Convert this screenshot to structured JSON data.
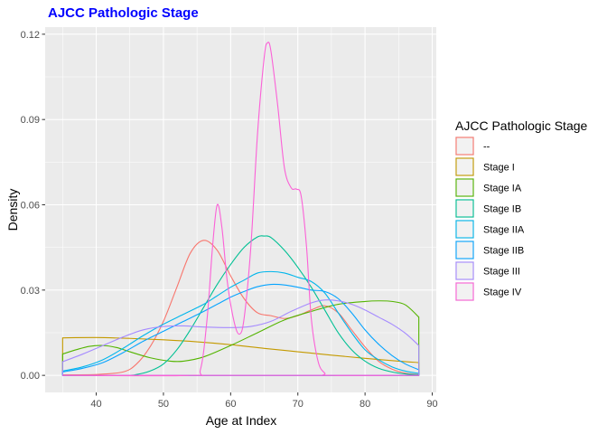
{
  "chart_data": {
    "type": "line",
    "title": "AJCC Pathologic Stage",
    "xlabel": "Age at Index",
    "ylabel": "Density",
    "xlim": [
      35,
      88
    ],
    "ylim": [
      0,
      0.12
    ],
    "x_ticks": [
      40,
      50,
      60,
      70,
      80,
      90
    ],
    "y_ticks": [
      0.0,
      0.03,
      0.06,
      0.09,
      0.12
    ],
    "x_tick_labels": [
      "40",
      "50",
      "60",
      "70",
      "80",
      "90"
    ],
    "y_tick_labels": [
      "0.00",
      "0.03",
      "0.06",
      "0.09",
      "0.12"
    ],
    "grid": true,
    "legend": {
      "title": "AJCC Pathologic Stage",
      "position": "right"
    },
    "series": [
      {
        "name": "--",
        "color": "#F8766D",
        "points": [
          [
            35,
            0.0002
          ],
          [
            40,
            0.0003
          ],
          [
            44,
            0.0012
          ],
          [
            46,
            0.004
          ],
          [
            48,
            0.01
          ],
          [
            50,
            0.019
          ],
          [
            52,
            0.031
          ],
          [
            54,
            0.043
          ],
          [
            56,
            0.0475
          ],
          [
            58,
            0.044
          ],
          [
            60,
            0.035
          ],
          [
            62,
            0.027
          ],
          [
            64,
            0.022
          ],
          [
            66,
            0.021
          ],
          [
            68,
            0.02
          ],
          [
            70,
            0.021
          ],
          [
            72,
            0.023
          ],
          [
            74,
            0.0245
          ],
          [
            76,
            0.022
          ],
          [
            78,
            0.016
          ],
          [
            80,
            0.01
          ],
          [
            82,
            0.005
          ],
          [
            84,
            0.0022
          ],
          [
            86,
            0.0008
          ],
          [
            88,
            0.0003
          ]
        ]
      },
      {
        "name": "Stage I",
        "color": "#C49A00",
        "points": [
          [
            35,
            0.0132
          ],
          [
            40,
            0.0133
          ],
          [
            45,
            0.013
          ],
          [
            50,
            0.0125
          ],
          [
            55,
            0.0118
          ],
          [
            60,
            0.0108
          ],
          [
            65,
            0.0095
          ],
          [
            70,
            0.0083
          ],
          [
            75,
            0.0071
          ],
          [
            80,
            0.006
          ],
          [
            85,
            0.005
          ],
          [
            88,
            0.0045
          ]
        ]
      },
      {
        "name": "Stage IA",
        "color": "#53B400",
        "points": [
          [
            35,
            0.0075
          ],
          [
            37,
            0.009
          ],
          [
            39,
            0.0102
          ],
          [
            41,
            0.0105
          ],
          [
            43,
            0.0098
          ],
          [
            45,
            0.0083
          ],
          [
            48,
            0.0062
          ],
          [
            51,
            0.005
          ],
          [
            53,
            0.005
          ],
          [
            56,
            0.0065
          ],
          [
            60,
            0.0105
          ],
          [
            64,
            0.015
          ],
          [
            68,
            0.0195
          ],
          [
            72,
            0.0225
          ],
          [
            76,
            0.025
          ],
          [
            80,
            0.026
          ],
          [
            82,
            0.0262
          ],
          [
            84,
            0.026
          ],
          [
            86,
            0.0248
          ],
          [
            88,
            0.0205
          ]
        ]
      },
      {
        "name": "Stage IB",
        "color": "#00C094",
        "points": [
          [
            35,
            0
          ],
          [
            44,
            0
          ],
          [
            46,
            0.0003
          ],
          [
            48,
            0.0015
          ],
          [
            50,
            0.004
          ],
          [
            52,
            0.009
          ],
          [
            54,
            0.016
          ],
          [
            56,
            0.024
          ],
          [
            58,
            0.032
          ],
          [
            60,
            0.039
          ],
          [
            62,
            0.045
          ],
          [
            64,
            0.0487
          ],
          [
            65,
            0.049
          ],
          [
            66,
            0.0485
          ],
          [
            68,
            0.044
          ],
          [
            70,
            0.038
          ],
          [
            72,
            0.031
          ],
          [
            74,
            0.023
          ],
          [
            76,
            0.015
          ],
          [
            78,
            0.009
          ],
          [
            80,
            0.005
          ],
          [
            82,
            0.0025
          ],
          [
            84,
            0.0012
          ],
          [
            86,
            0.0005
          ],
          [
            88,
            0.0002
          ]
        ]
      },
      {
        "name": "Stage IIA",
        "color": "#00B6EB",
        "points": [
          [
            35,
            0.0015
          ],
          [
            38,
            0.003
          ],
          [
            41,
            0.0055
          ],
          [
            44,
            0.0095
          ],
          [
            47,
            0.014
          ],
          [
            50,
            0.018
          ],
          [
            53,
            0.0215
          ],
          [
            56,
            0.025
          ],
          [
            58,
            0.028
          ],
          [
            60,
            0.031
          ],
          [
            62,
            0.0335
          ],
          [
            64,
            0.036
          ],
          [
            66,
            0.0365
          ],
          [
            68,
            0.036
          ],
          [
            70,
            0.0345
          ],
          [
            72,
            0.033
          ],
          [
            74,
            0.029
          ],
          [
            76,
            0.022
          ],
          [
            78,
            0.015
          ],
          [
            80,
            0.009
          ],
          [
            82,
            0.0055
          ],
          [
            84,
            0.003
          ],
          [
            86,
            0.0015
          ],
          [
            88,
            0.0007
          ]
        ]
      },
      {
        "name": "Stage IIB",
        "color": "#06A4FF",
        "points": [
          [
            35,
            0.0012
          ],
          [
            38,
            0.0025
          ],
          [
            41,
            0.0045
          ],
          [
            44,
            0.008
          ],
          [
            47,
            0.012
          ],
          [
            50,
            0.0155
          ],
          [
            53,
            0.019
          ],
          [
            56,
            0.0225
          ],
          [
            58,
            0.025
          ],
          [
            60,
            0.0275
          ],
          [
            62,
            0.0295
          ],
          [
            64,
            0.0312
          ],
          [
            66,
            0.032
          ],
          [
            68,
            0.0318
          ],
          [
            70,
            0.031
          ],
          [
            72,
            0.03
          ],
          [
            74,
            0.0295
          ],
          [
            76,
            0.027
          ],
          [
            78,
            0.022
          ],
          [
            80,
            0.016
          ],
          [
            82,
            0.011
          ],
          [
            84,
            0.007
          ],
          [
            86,
            0.004
          ],
          [
            88,
            0.002
          ]
        ]
      },
      {
        "name": "Stage III",
        "color": "#A58AFF",
        "points": [
          [
            35,
            0.0048
          ],
          [
            38,
            0.0075
          ],
          [
            41,
            0.0105
          ],
          [
            44,
            0.0135
          ],
          [
            47,
            0.016
          ],
          [
            50,
            0.0172
          ],
          [
            53,
            0.0174
          ],
          [
            56,
            0.017
          ],
          [
            60,
            0.0168
          ],
          [
            63,
            0.0172
          ],
          [
            66,
            0.019
          ],
          [
            69,
            0.0225
          ],
          [
            72,
            0.0255
          ],
          [
            74,
            0.0265
          ],
          [
            76,
            0.0262
          ],
          [
            78,
            0.025
          ],
          [
            80,
            0.023
          ],
          [
            82,
            0.0205
          ],
          [
            84,
            0.018
          ],
          [
            86,
            0.0148
          ],
          [
            88,
            0.0105
          ]
        ]
      },
      {
        "name": "Stage IV",
        "color": "#FB61D7",
        "points": [
          [
            35,
            0
          ],
          [
            54,
            0
          ],
          [
            55.5,
            0.002
          ],
          [
            56.5,
            0.02
          ],
          [
            57.3,
            0.045
          ],
          [
            58,
            0.06
          ],
          [
            58.7,
            0.052
          ],
          [
            59.5,
            0.033
          ],
          [
            60.5,
            0.019
          ],
          [
            61.3,
            0.0145
          ],
          [
            62,
            0.02
          ],
          [
            63,
            0.045
          ],
          [
            64,
            0.085
          ],
          [
            65,
            0.112
          ],
          [
            65.5,
            0.117
          ],
          [
            66,
            0.114
          ],
          [
            67,
            0.095
          ],
          [
            68,
            0.073
          ],
          [
            69,
            0.066
          ],
          [
            69.8,
            0.0655
          ],
          [
            70.5,
            0.063
          ],
          [
            71.3,
            0.045
          ],
          [
            72,
            0.02
          ],
          [
            73,
            0.005
          ],
          [
            74,
            0.0008
          ],
          [
            75,
            0
          ],
          [
            88,
            0
          ]
        ]
      }
    ]
  }
}
